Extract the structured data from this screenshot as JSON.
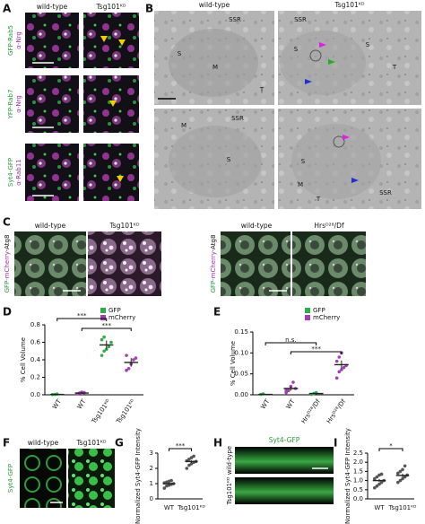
{
  "A": {
    "label": "A",
    "columns": [
      "wild-type",
      "Tsg101ᴷᴰ"
    ],
    "rows": [
      {
        "green": "GFP-Rab5",
        "magenta": "α-Nrg"
      },
      {
        "green": "YFP-Rab7",
        "magenta": "α-Nrg"
      },
      {
        "green": "Syt4-GFP",
        "magenta": "α-Rab11"
      }
    ]
  },
  "B": {
    "label": "B",
    "columns": [
      "wild-type",
      "Tsg101ᴷᴰ"
    ],
    "annotations": [
      [
        "SSR",
        "S",
        "M",
        "T"
      ],
      [
        "SSR",
        "S",
        "S",
        "T"
      ],
      [
        "M",
        "S",
        "SSR"
      ],
      [
        "S",
        "M",
        "T",
        "SSR"
      ]
    ]
  },
  "C": {
    "label": "C",
    "left": {
      "side_label": [
        "GFP-",
        "mCherry",
        "-Atg8"
      ],
      "columns": [
        "wild-type",
        "Tsg101ᴷᴰ"
      ]
    },
    "right": {
      "side_label": [
        "GFP-",
        "mCherry",
        "-Atg8"
      ],
      "columns": [
        "wild-type",
        "Hrsᴰ²⁸/Df"
      ]
    }
  },
  "F": {
    "label": "F",
    "side_label": "Syt4-GFP",
    "columns": [
      "wild-type",
      "Tsg101ᴷᴰ"
    ]
  },
  "H": {
    "label": "H",
    "title": "Syt4-GFP",
    "rows": [
      "wild-type",
      "Tsg101ᴷᴰ"
    ]
  },
  "chart_data": [
    {
      "panel": "D",
      "type": "dotplot",
      "ylabel": "% Cell Volume",
      "categories": [
        "WT",
        "WT",
        "Tsg101ᴷᴰ",
        "Tsg101ᴷᴰ"
      ],
      "series": [
        {
          "name": "GFP",
          "color": "#2fae48",
          "values": [
            0.004,
            null,
            0.57,
            null
          ],
          "errors": [
            0.002,
            null,
            0.05,
            null
          ],
          "points": [
            [
              0.002,
              0.005,
              0.008
            ],
            null,
            [
              0.45,
              0.5,
              0.52,
              0.55,
              0.6,
              0.63,
              0.66
            ],
            null
          ]
        },
        {
          "name": "mCherry",
          "color": "#a23fb5",
          "values": [
            null,
            0.02,
            null,
            0.37
          ],
          "errors": [
            null,
            0.01,
            null,
            0.05
          ],
          "points": [
            null,
            [
              0.01,
              0.02,
              0.03,
              0.025
            ],
            null,
            [
              0.28,
              0.3,
              0.35,
              0.4,
              0.42,
              0.45
            ]
          ]
        }
      ],
      "ylim": [
        0,
        0.8
      ],
      "yticks": [
        {
          "value": 0,
          "label": "0.0"
        },
        0.2,
        0.4,
        0.6,
        0.8
      ],
      "significance": [
        "***",
        "***"
      ]
    },
    {
      "panel": "E",
      "type": "dotplot",
      "ylabel": "% Cell Volume",
      "categories": [
        "WT",
        "WT",
        "Hrsᴰ²⁸/Df",
        "Hrsᴰ²⁸/Df"
      ],
      "series": [
        {
          "name": "GFP",
          "color": "#2fae48",
          "values": [
            0.001,
            null,
            0.003,
            null
          ],
          "errors": [
            0.001,
            null,
            0.001,
            null
          ],
          "points": [
            [
              0.001,
              0.002
            ],
            null,
            [
              0.001,
              0.003,
              0.005
            ],
            null
          ]
        },
        {
          "name": "mCherry",
          "color": "#a23fb5",
          "values": [
            null,
            0.015,
            null,
            0.072
          ],
          "errors": [
            null,
            0.005,
            null,
            0.01
          ],
          "points": [
            null,
            [
              0.005,
              0.01,
              0.02,
              0.03,
              0.015,
              0.01
            ],
            null,
            [
              0.04,
              0.055,
              0.06,
              0.065,
              0.07,
              0.08,
              0.09,
              0.1
            ]
          ]
        }
      ],
      "ylim": [
        0,
        0.15
      ],
      "yticks": [
        {
          "value": 0,
          "label": "0.00"
        },
        0.05,
        {
          "value": 0.1,
          "label": "0.10"
        },
        0.15
      ],
      "significance": [
        "n.s.",
        "***"
      ]
    },
    {
      "panel": "G",
      "type": "dotplot",
      "ylabel": "Normalized Syt4-GFP Intensity",
      "categories": [
        "WT",
        "Tsg101ᴷᴰ"
      ],
      "color": "#555555",
      "values": [
        1.0,
        2.45
      ],
      "errors": [
        0.06,
        0.09
      ],
      "points": [
        [
          0.7,
          0.85,
          0.9,
          0.95,
          1.0,
          1.05,
          1.1,
          1.15,
          1.2
        ],
        [
          2.0,
          2.2,
          2.3,
          2.4,
          2.45,
          2.5,
          2.6,
          2.7,
          2.8
        ]
      ],
      "ylim": [
        0,
        3
      ],
      "yticks": [
        0,
        1,
        2,
        3
      ],
      "significance": [
        "***"
      ]
    },
    {
      "panel": "I",
      "type": "dotplot",
      "ylabel": "Normalized Syt4-GFP Intensity",
      "categories": [
        "WT",
        "Tsg101ᴷᴰ"
      ],
      "color": "#555555",
      "values": [
        1.0,
        1.28
      ],
      "errors": [
        0.09,
        0.1
      ],
      "points": [
        [
          0.6,
          0.7,
          0.8,
          0.9,
          1.0,
          1.1,
          1.2,
          1.3,
          1.35
        ],
        [
          0.9,
          1.0,
          1.1,
          1.2,
          1.3,
          1.4,
          1.5,
          1.6,
          1.8
        ]
      ],
      "ylim": [
        0,
        2.5
      ],
      "yticks": [
        {
          "value": 0,
          "label": "0.0"
        },
        0.5,
        {
          "value": 1,
          "label": "1.0"
        },
        1.5,
        {
          "value": 2,
          "label": "2.0"
        },
        2.5
      ],
      "significance": [
        "*"
      ]
    }
  ]
}
